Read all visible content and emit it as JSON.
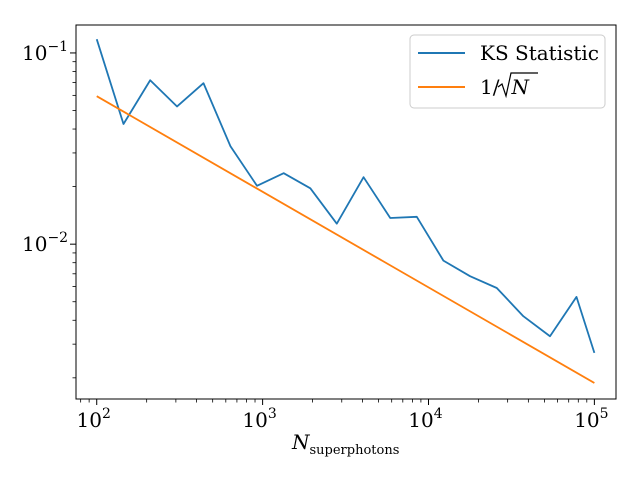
{
  "chart_data": {
    "type": "line",
    "xscale": "log",
    "yscale": "log",
    "xlim": [
      75,
      135000
    ],
    "ylim": [
      0.00155,
      0.14
    ],
    "xlabel": "N",
    "xlabel_sub": "superphotons",
    "ylabel": "",
    "grid": false,
    "legend_position": "top-right",
    "x_ticks": [
      {
        "value": 100,
        "base": "10",
        "exp": "2"
      },
      {
        "value": 1000,
        "base": "10",
        "exp": "3"
      },
      {
        "value": 10000,
        "base": "10",
        "exp": "4"
      },
      {
        "value": 100000,
        "base": "10",
        "exp": "5"
      }
    ],
    "y_ticks": [
      {
        "value": 0.1,
        "base": "10",
        "exp": "−1"
      },
      {
        "value": 0.01,
        "base": "10",
        "exp": "−2"
      }
    ],
    "series": [
      {
        "name": "KS Statistic",
        "color": "#1f77b4",
        "x": [
          100,
          145,
          210,
          305,
          440,
          640,
          925,
          1340,
          1940,
          2800,
          4060,
          5880,
          8500,
          12300,
          17800,
          25800,
          37300,
          54000,
          78000,
          100000
        ],
        "y": [
          0.118,
          0.0425,
          0.072,
          0.0525,
          0.0695,
          0.0325,
          0.0202,
          0.0235,
          0.0196,
          0.0128,
          0.0224,
          0.0137,
          0.0139,
          0.0082,
          0.0068,
          0.0059,
          0.0042,
          0.0033,
          0.0053,
          0.0027
        ]
      },
      {
        "name": "1/√N",
        "name_base": "1/",
        "name_radicand": "N",
        "color": "#ff7f0e",
        "x": [
          100,
          100000
        ],
        "y": [
          0.0594,
          0.00188
        ]
      }
    ]
  }
}
